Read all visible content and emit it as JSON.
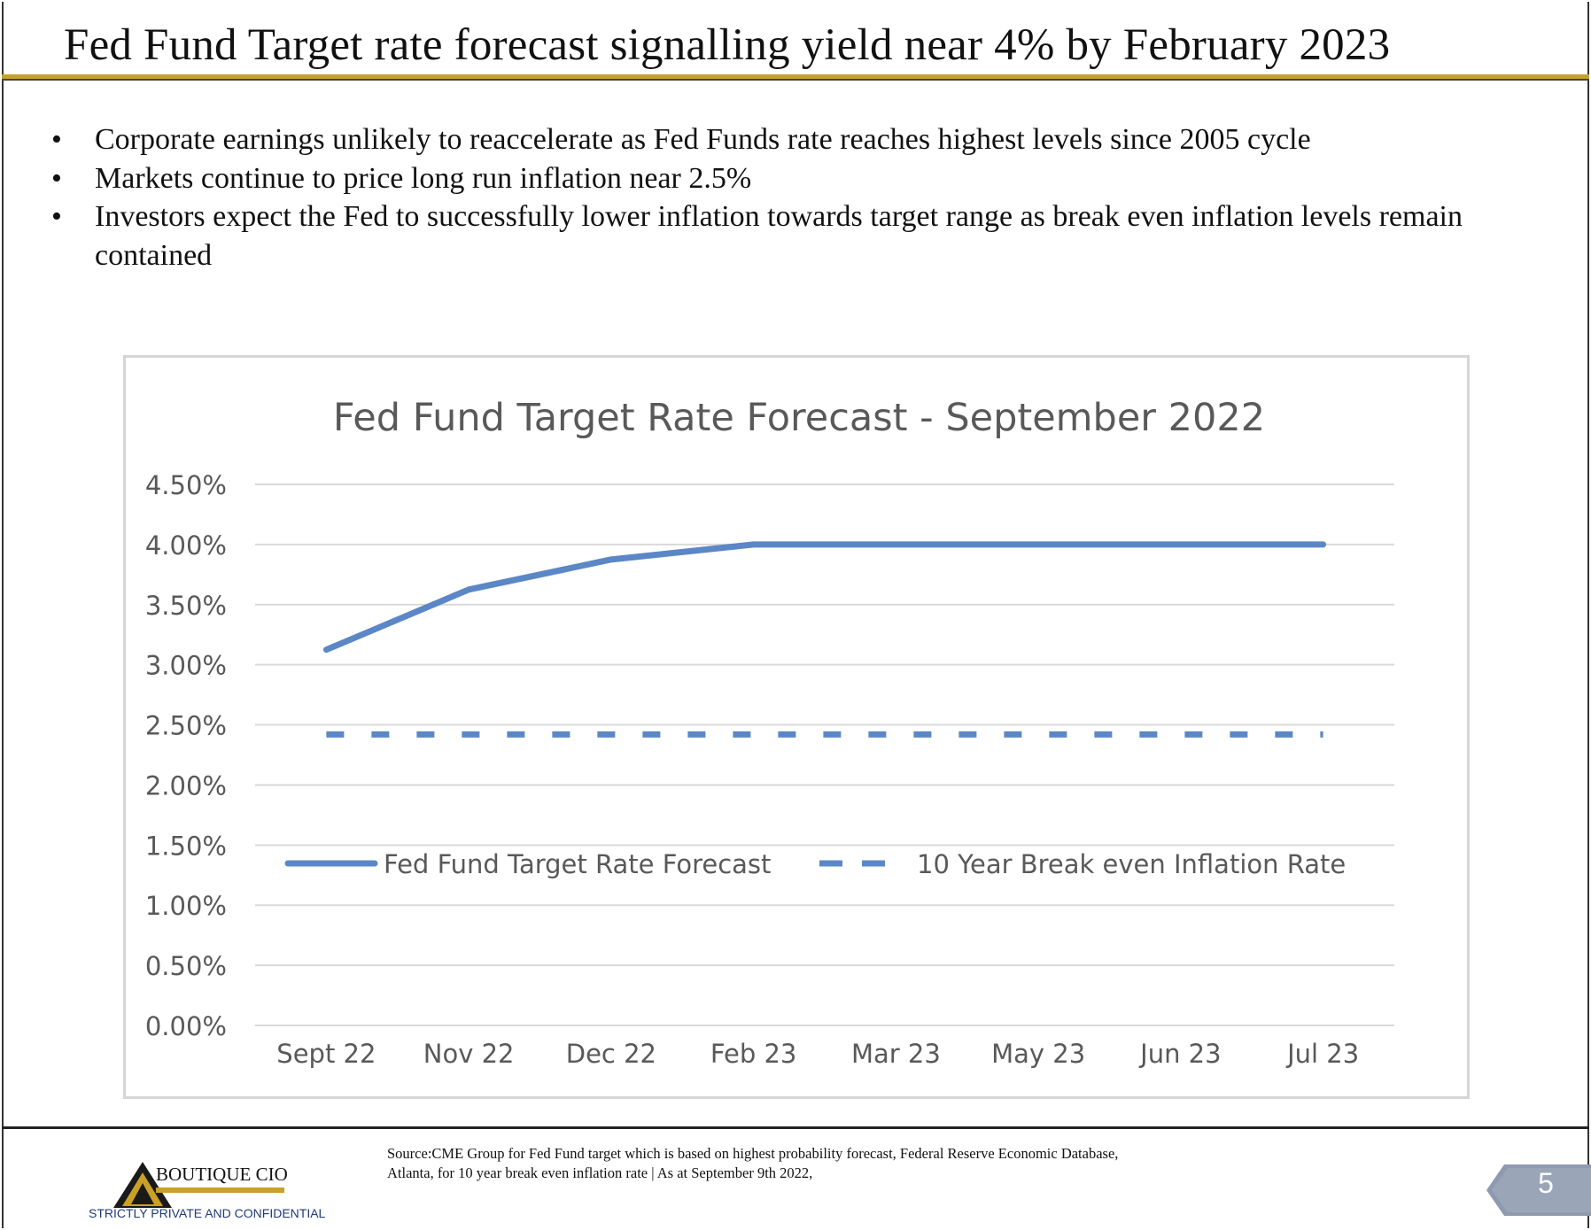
{
  "slide": {
    "title": "Fed Fund Target rate forecast signalling yield near 4% by February 2023",
    "bullets": [
      {
        "lines": [
          "Corporate earnings unlikely to reaccelerate as Fed Funds rate reaches highest levels since 2005 cycle"
        ]
      },
      {
        "lines": [
          "Markets continue to price long run inflation near 2.5%"
        ]
      },
      {
        "lines": [
          "Investors expect the Fed to successfully lower inflation towards target range as break even inflation levels remain",
          "contained"
        ]
      }
    ],
    "bullet_glyph": "•"
  },
  "chart_data": {
    "type": "line",
    "title": "Fed Fund Target Rate Forecast - September 2022",
    "categories": [
      "Sept 22",
      "Nov 22",
      "Dec 22",
      "Feb 23",
      "Mar 23",
      "May 23",
      "Jun 23",
      "Jul 23"
    ],
    "series": [
      {
        "name": "Fed Fund Target Rate Forecast",
        "values": [
          3.125,
          3.625,
          3.875,
          4.0,
          4.0,
          4.0,
          4.0,
          4.0
        ],
        "style": "solid",
        "color": "#5b87c6"
      },
      {
        "name": "10 Year Break even Inflation Rate",
        "values": [
          2.42,
          2.42,
          2.42,
          2.42,
          2.42,
          2.42,
          2.42,
          2.42
        ],
        "style": "dashed",
        "color": "#5b87c6"
      }
    ],
    "y_ticks": [
      "0.00%",
      "0.50%",
      "1.00%",
      "1.50%",
      "2.00%",
      "2.50%",
      "3.00%",
      "3.50%",
      "4.00%",
      "4.50%"
    ],
    "ylim": [
      0,
      4.5
    ],
    "xlabel": "",
    "ylabel": "",
    "grid": true,
    "legend_position": "inside-lower",
    "gridline_color": "#d9d9d9"
  },
  "footer": {
    "logo_name": "BOUTIQUE CIO",
    "logo_icon": "mountain-triangle-icon",
    "confidential": "STRICTLY PRIVATE AND CONFIDENTIAL",
    "source_lines": [
      "Source:CME Group for Fed Fund target which is based on highest probability forecast, Federal Reserve Economic Database,",
      "Atlanta, for 10 year break even inflation rate | As at September 9th 2022,"
    ],
    "page_number": "5",
    "accent_gold": "#c9a028",
    "badge_color": "#8e9aaf"
  }
}
